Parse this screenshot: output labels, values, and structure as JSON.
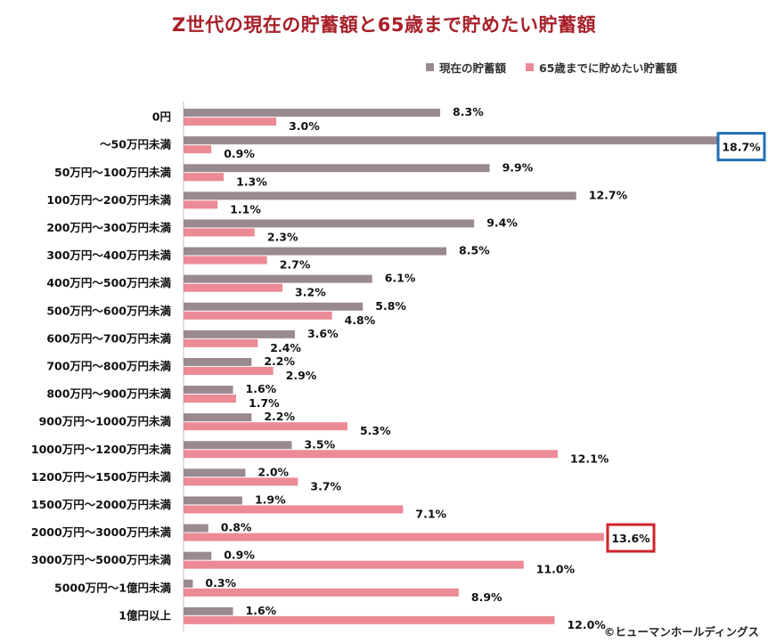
{
  "title": "Z世代の現在の貯蓄額と65歳まで貯めたい貯蓄額",
  "credit": "©ヒューマンホールディングス",
  "colors": {
    "title": "#a8202a",
    "current": "#9b8990",
    "target": "#ec8a95",
    "highlight_blue": "#1f6fb4",
    "highlight_red": "#d0222b"
  },
  "chart_data": {
    "type": "bar",
    "orientation": "horizontal",
    "title": "Z世代の現在の貯蓄額と65歳まで貯めたい貯蓄額",
    "unit": "%",
    "xlim": [
      0,
      18.7
    ],
    "grid": false,
    "legend_position": "top-right",
    "categories": [
      "0円",
      "～50万円未満",
      "50万円～100万円未満",
      "100万円～200万円未満",
      "200万円～300万円未満",
      "300万円～400万円未満",
      "400万円～500万円未満",
      "500万円～600万円未満",
      "600万円～700万円未満",
      "700万円～800万円未満",
      "800万円～900万円未満",
      "900万円～1000万円未満",
      "1000万円～1200万円未満",
      "1200万円～1500万円未満",
      "1500万円～2000万円未満",
      "2000万円～3000万円未満",
      "3000万円～5000万円未満",
      "5000万円～1億円未満",
      "1億円以上"
    ],
    "series": [
      {
        "name": "現在の貯蓄額",
        "values": [
          8.3,
          18.7,
          9.9,
          12.7,
          9.4,
          8.5,
          6.1,
          5.8,
          3.6,
          2.2,
          1.6,
          2.2,
          3.5,
          2.0,
          1.9,
          0.8,
          0.9,
          0.3,
          1.6
        ],
        "labels": [
          "8.3%",
          "18.7%",
          "9.9%",
          "12.7%",
          "9.4%",
          "8.5%",
          "6.1%",
          "5.8%",
          "3.6%",
          "2.2%",
          "1.6%",
          "2.2%",
          "3.5%",
          "2.0%",
          "1.9%",
          "0.8%",
          "0.9%",
          "0.3%",
          "1.6%"
        ]
      },
      {
        "name": "65歳までに貯めたい貯蓄額",
        "values": [
          3.0,
          0.9,
          1.3,
          1.1,
          2.3,
          2.7,
          3.2,
          4.8,
          2.4,
          2.9,
          1.7,
          5.3,
          12.1,
          3.7,
          7.1,
          13.6,
          11.0,
          8.9,
          12.0
        ],
        "labels": [
          "3.0%",
          "0.9%",
          "1.3%",
          "1.1%",
          "2.3%",
          "2.7%",
          "3.2%",
          "4.8%",
          "2.4%",
          "2.9%",
          "1.7%",
          "5.3%",
          "12.1%",
          "3.7%",
          "7.1%",
          "13.6%",
          "11.0%",
          "8.9%",
          "12.0%"
        ]
      }
    ],
    "highlights": [
      {
        "series": 0,
        "category": 1,
        "color": "blue"
      },
      {
        "series": 1,
        "category": 15,
        "color": "red"
      }
    ]
  }
}
